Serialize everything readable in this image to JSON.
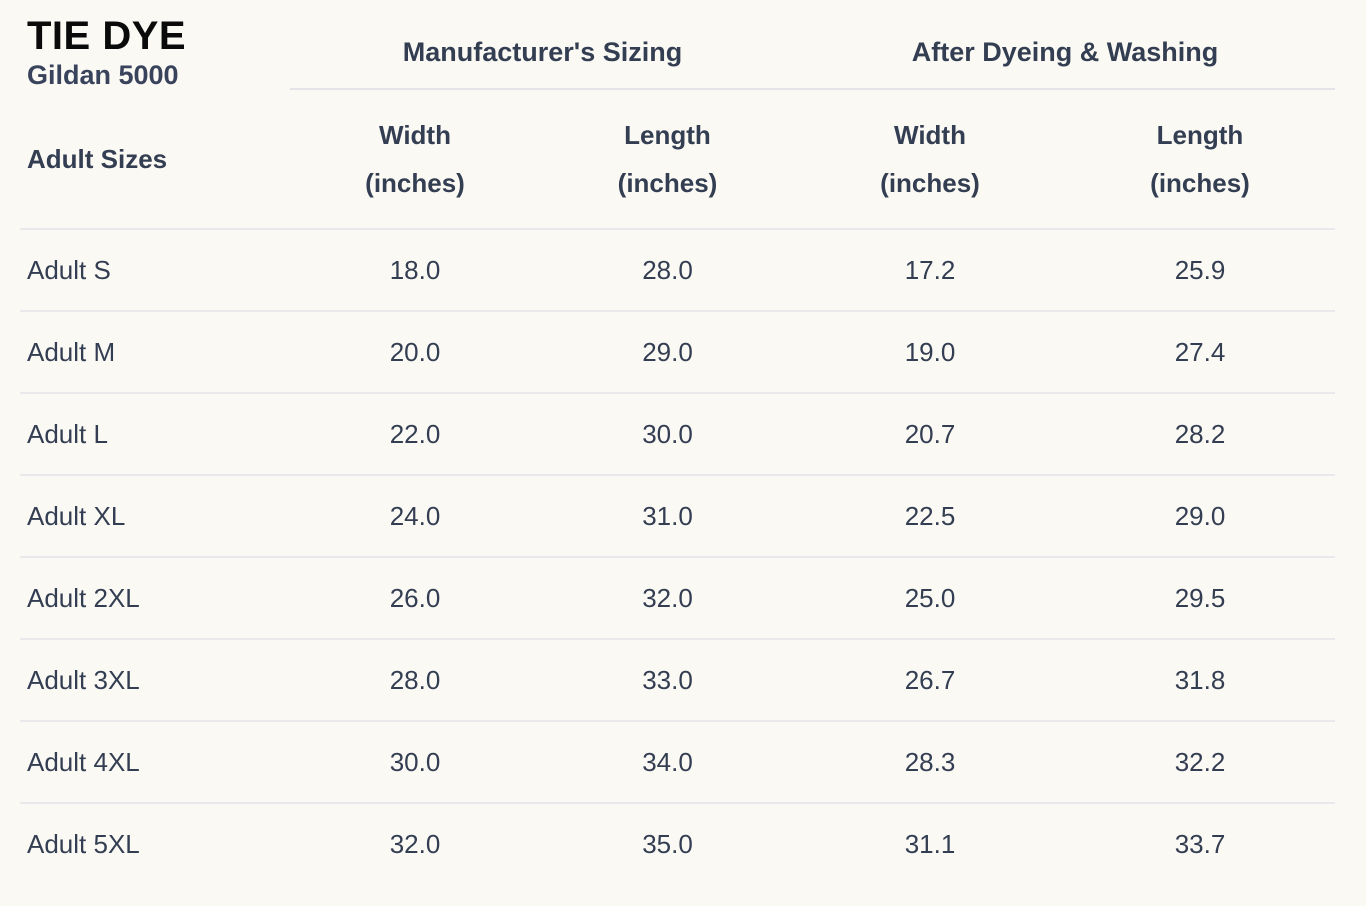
{
  "page": {
    "background_color": "#FBF9F4",
    "text_color": "#333E52",
    "title_color": "#0A0A0B",
    "divider_color": "#E6E5E8"
  },
  "brand": {
    "title": "TIE DYE",
    "subtitle": "Gildan 5000"
  },
  "table": {
    "row_header_label": "Adult Sizes",
    "groups": [
      {
        "label": "Manufacturer's Sizing"
      },
      {
        "label": "After Dyeing & Washing"
      }
    ],
    "columns": [
      {
        "line1": "Width",
        "line2": "(inches)"
      },
      {
        "line1": "Length",
        "line2": "(inches)"
      },
      {
        "line1": "Width",
        "line2": "(inches)"
      },
      {
        "line1": "Length",
        "line2": "(inches)"
      }
    ],
    "rows": [
      {
        "size": "Adult S",
        "values": [
          "18.0",
          "28.0",
          "17.2",
          "25.9"
        ]
      },
      {
        "size": "Adult M",
        "values": [
          "20.0",
          "29.0",
          "19.0",
          "27.4"
        ]
      },
      {
        "size": "Adult L",
        "values": [
          "22.0",
          "30.0",
          "20.7",
          "28.2"
        ]
      },
      {
        "size": "Adult XL",
        "values": [
          "24.0",
          "31.0",
          "22.5",
          "29.0"
        ]
      },
      {
        "size": "Adult 2XL",
        "values": [
          "26.0",
          "32.0",
          "25.0",
          "29.5"
        ]
      },
      {
        "size": "Adult 3XL",
        "values": [
          "28.0",
          "33.0",
          "26.7",
          "31.8"
        ]
      },
      {
        "size": "Adult 4XL",
        "values": [
          "30.0",
          "34.0",
          "28.3",
          "32.2"
        ]
      },
      {
        "size": "Adult 5XL",
        "values": [
          "32.0",
          "35.0",
          "31.1",
          "33.7"
        ]
      }
    ]
  },
  "chart_data": {
    "type": "table",
    "title": "TIE DYE — Gildan 5000 adult size chart",
    "column_groups": [
      "Manufacturer's Sizing",
      "After Dyeing & Washing"
    ],
    "columns": [
      "Adult Sizes",
      "Manufacturer's Sizing — Width (inches)",
      "Manufacturer's Sizing — Length (inches)",
      "After Dyeing & Washing — Width (inches)",
      "After Dyeing & Washing — Length (inches)"
    ],
    "rows": [
      [
        "Adult S",
        18.0,
        28.0,
        17.2,
        25.9
      ],
      [
        "Adult M",
        20.0,
        29.0,
        19.0,
        27.4
      ],
      [
        "Adult L",
        22.0,
        30.0,
        20.7,
        28.2
      ],
      [
        "Adult XL",
        24.0,
        31.0,
        22.5,
        29.0
      ],
      [
        "Adult 2XL",
        26.0,
        32.0,
        25.0,
        29.5
      ],
      [
        "Adult 3XL",
        28.0,
        33.0,
        26.7,
        31.8
      ],
      [
        "Adult 4XL",
        30.0,
        34.0,
        28.3,
        32.2
      ],
      [
        "Adult 5XL",
        32.0,
        35.0,
        31.1,
        33.7
      ]
    ]
  }
}
